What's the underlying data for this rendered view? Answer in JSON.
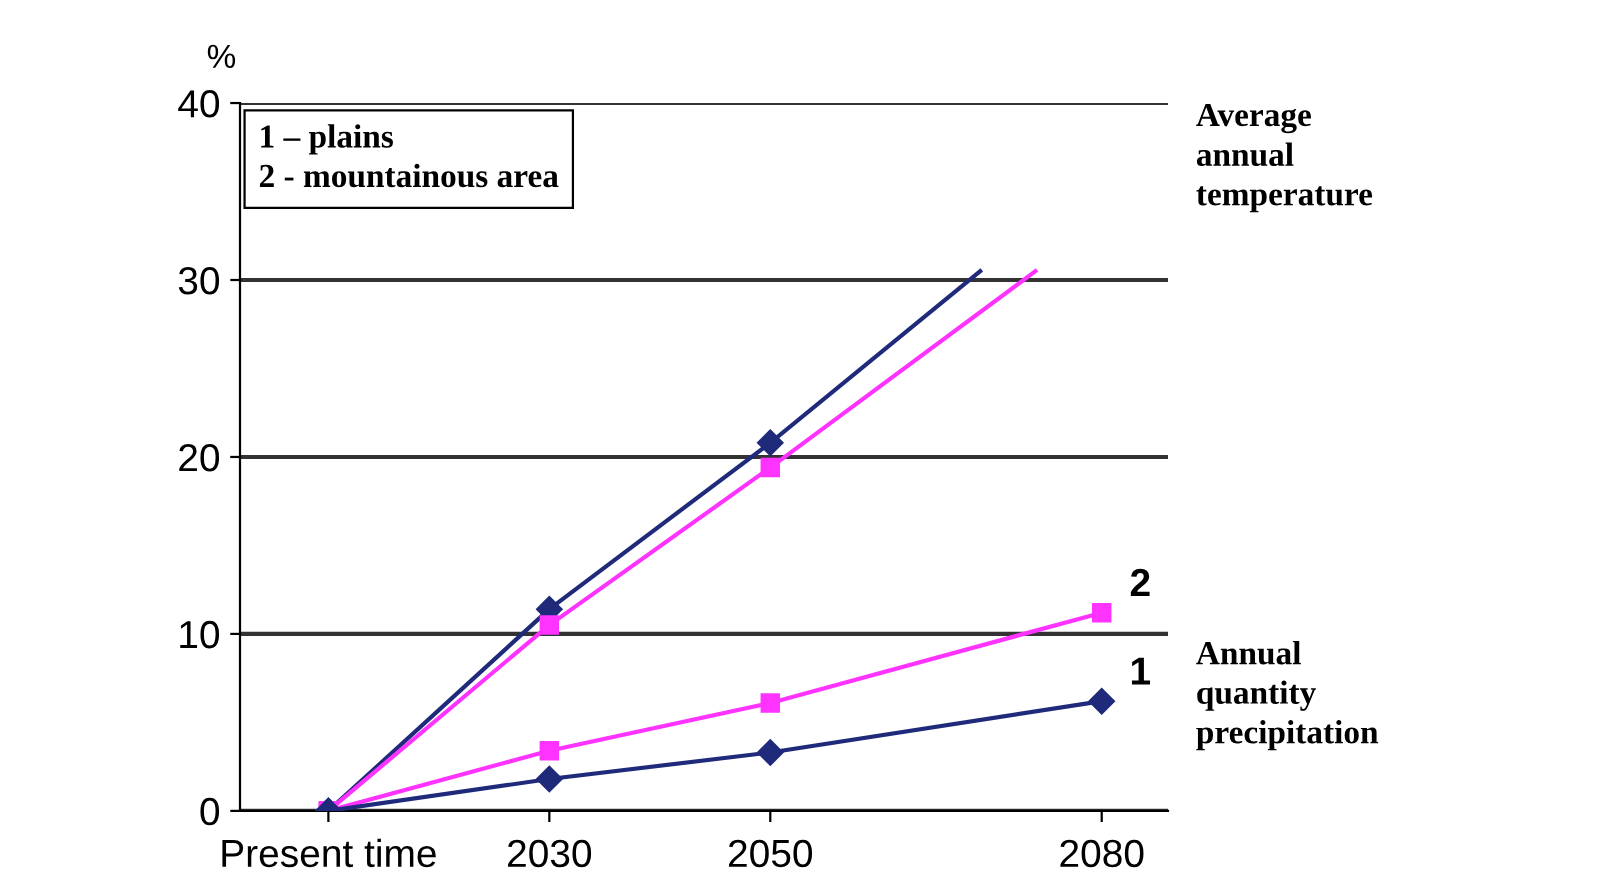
{
  "chart_data": {
    "type": "line",
    "ylabel": "%",
    "xlim": [
      2002,
      2086
    ],
    "xticks": [
      {
        "value": 2010,
        "label": "Present time"
      },
      2030,
      2050,
      2080
    ],
    "ylim": [
      0,
      40
    ],
    "yticks": [
      0,
      10,
      20,
      30,
      40
    ],
    "grid": "y",
    "series": [
      {
        "color": "#1f2a7a",
        "marker": "diamond",
        "x": [
          2010,
          2030,
          2050
        ],
        "values": [
          0,
          11.4,
          20.8
        ]
      },
      {
        "color": "#1f2a7a",
        "marker": "none",
        "x": [
          2050,
          2069
        ],
        "values": [
          20.8,
          30.5
        ]
      },
      {
        "color": "#ff33ff",
        "marker": "square",
        "x": [
          2010,
          2030,
          2050
        ],
        "values": [
          0,
          10.5,
          19.4
        ]
      },
      {
        "color": "#ff33ff",
        "marker": "none",
        "x": [
          2050,
          2074
        ],
        "values": [
          19.4,
          30.5
        ]
      },
      {
        "color": "#ff33ff",
        "marker": "square",
        "x": [
          2010,
          2030,
          2050,
          2080
        ],
        "values": [
          0,
          3.4,
          6.1,
          11.2
        ]
      },
      {
        "color": "#1f2a7a",
        "marker": "diamond",
        "x": [
          2010,
          2030,
          2050,
          2080
        ],
        "values": [
          0,
          1.8,
          3.3,
          6.2
        ]
      }
    ],
    "annotations": [
      "1 – plains\n2 - mountainous area",
      "Average\nannual\ntemperature",
      "Annual\nquantity\nprecipitation",
      {
        "text": "2",
        "x": 2080,
        "y": 11.2
      },
      {
        "text": "1",
        "x": 2080,
        "y": 6.2
      }
    ]
  }
}
